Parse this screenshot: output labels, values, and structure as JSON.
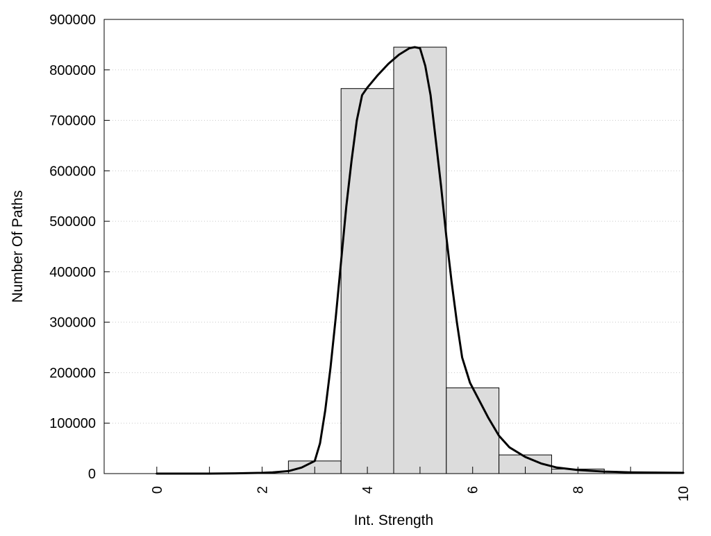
{
  "chart_data": {
    "type": "bar",
    "title": "",
    "xlabel": "Int. Strength",
    "ylabel": "Number Of Paths",
    "xlim": [
      -1,
      10
    ],
    "ylim": [
      0,
      900000
    ],
    "x_ticks": [
      "0",
      "2",
      "4",
      "6",
      "8",
      "10"
    ],
    "y_ticks": [
      "0",
      "100000",
      "200000",
      "300000",
      "400000",
      "500000",
      "600000",
      "700000",
      "800000",
      "900000"
    ],
    "grid": "horizontal dotted",
    "bar_color": "#dcdcdc",
    "bars": [
      {
        "x": 0,
        "value": 0
      },
      {
        "x": 1,
        "value": 0
      },
      {
        "x": 2,
        "value": 0
      },
      {
        "x": 3,
        "value": 25000
      },
      {
        "x": 4,
        "value": 763000
      },
      {
        "x": 5,
        "value": 845000
      },
      {
        "x": 6,
        "value": 170000
      },
      {
        "x": 7,
        "value": 37000
      },
      {
        "x": 8,
        "value": 9000
      },
      {
        "x": 9,
        "value": 3000
      }
    ],
    "fit_curve": {
      "color": "#000000",
      "points": [
        [
          0,
          0
        ],
        [
          1,
          0
        ],
        [
          1.5,
          500
        ],
        [
          2,
          1500
        ],
        [
          2.2,
          2500
        ],
        [
          2.5,
          5000
        ],
        [
          2.75,
          12000
        ],
        [
          3,
          25000
        ],
        [
          3.1,
          60000
        ],
        [
          3.2,
          125000
        ],
        [
          3.3,
          210000
        ],
        [
          3.4,
          310000
        ],
        [
          3.5,
          420000
        ],
        [
          3.6,
          530000
        ],
        [
          3.7,
          620000
        ],
        [
          3.8,
          700000
        ],
        [
          3.9,
          750000
        ],
        [
          4,
          765000
        ],
        [
          4.2,
          790000
        ],
        [
          4.4,
          812000
        ],
        [
          4.6,
          830000
        ],
        [
          4.8,
          843000
        ],
        [
          4.9,
          845000
        ],
        [
          5,
          843000
        ],
        [
          5.1,
          808000
        ],
        [
          5.2,
          750000
        ],
        [
          5.3,
          660000
        ],
        [
          5.4,
          570000
        ],
        [
          5.5,
          470000
        ],
        [
          5.6,
          380000
        ],
        [
          5.7,
          300000
        ],
        [
          5.8,
          230000
        ],
        [
          5.95,
          180000
        ],
        [
          6.1,
          150000
        ],
        [
          6.3,
          110000
        ],
        [
          6.5,
          75000
        ],
        [
          6.7,
          52000
        ],
        [
          7,
          33000
        ],
        [
          7.3,
          20000
        ],
        [
          7.6,
          12000
        ],
        [
          8,
          7000
        ],
        [
          8.5,
          4000
        ],
        [
          9,
          2500
        ],
        [
          10,
          1500
        ]
      ]
    }
  }
}
